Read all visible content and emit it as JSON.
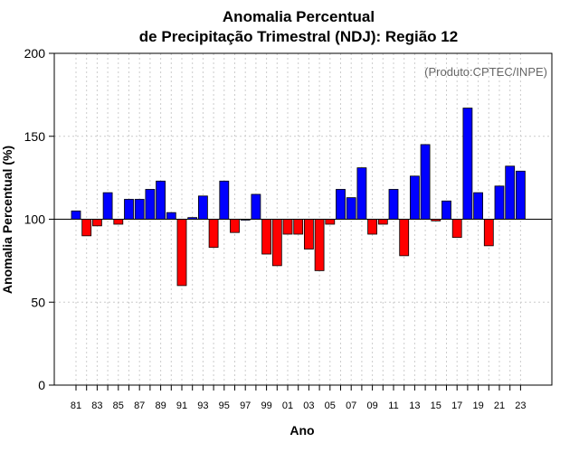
{
  "title": {
    "line1": "Anomalia Percentual",
    "line2": "de Precipitação Trimestral (NDJ): Região 12"
  },
  "credit": "(Produto:CPTEC/INPE)",
  "colors": {
    "positive": "#0000ff",
    "negative": "#ff0000",
    "grid": "#cccccc",
    "axis": "#000000"
  },
  "chart_data": {
    "type": "bar",
    "title": "Anomalia Percentual de Precipitação Trimestral (NDJ): Região 12",
    "xlabel": "Ano",
    "ylabel": "Anomalia Percentual (%)",
    "ylim": [
      0,
      200
    ],
    "yticks": [
      0,
      50,
      100,
      150,
      200
    ],
    "baseline": 100,
    "categories": [
      "1981",
      "1982",
      "1983",
      "1984",
      "1985",
      "1986",
      "1987",
      "1988",
      "1989",
      "1990",
      "1991",
      "1992",
      "1993",
      "1994",
      "1995",
      "1996",
      "1997",
      "1998",
      "1999",
      "2000",
      "2001",
      "2002",
      "2003",
      "2004",
      "2005",
      "2006",
      "2007",
      "2008",
      "2009",
      "2010",
      "2011",
      "2012",
      "2013",
      "2014",
      "2015",
      "2016",
      "2017",
      "2018",
      "2019",
      "2020",
      "2021",
      "2022",
      "2023"
    ],
    "xtick_labels": [
      "81",
      "",
      "83",
      "",
      "85",
      "",
      "87",
      "",
      "89",
      "",
      "91",
      "",
      "93",
      "",
      "95",
      "",
      "97",
      "",
      "99",
      "",
      "01",
      "",
      "03",
      "",
      "05",
      "",
      "07",
      "",
      "09",
      "",
      "11",
      "",
      "13",
      "",
      "15",
      "",
      "17",
      "",
      "19",
      "",
      "21",
      "",
      "23"
    ],
    "values": [
      105,
      90,
      96,
      116,
      97,
      112,
      112,
      118,
      123,
      104,
      60,
      101,
      114,
      83,
      123,
      92,
      100,
      115,
      79,
      72,
      91,
      91,
      82,
      69,
      97,
      118,
      113,
      131,
      91,
      97,
      118,
      78,
      126,
      145,
      99,
      111,
      89,
      167,
      116,
      84,
      120,
      132,
      129
    ],
    "grid": true
  }
}
